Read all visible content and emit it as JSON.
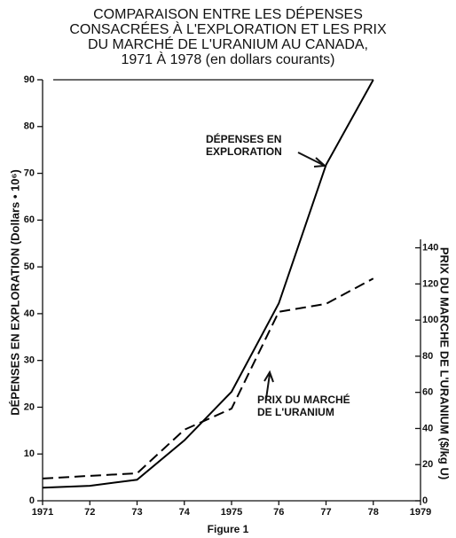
{
  "chart_data": {
    "type": "line",
    "title": [
      "COMPARAISON ENTRE LES DÉPENSES",
      "CONSACRÉES À L'EXPLORATION ET LES PRIX",
      "DU MARCHÉ DE L'URANIUM AU CANADA,",
      "1971 À 1978  (en dollars courants)"
    ],
    "ylabel": "DÉPENSES EN EXPLORATION (Dollars • 10⁶)",
    "y2label": "PRIX DU MARCHE DE L'URANIUM ($/kg U)",
    "caption": "Figure 1",
    "x": [
      1971,
      1972,
      1973,
      1974,
      1975,
      1976,
      1977,
      1978
    ],
    "xlim": [
      1971,
      1979
    ],
    "xticks": [
      1971,
      {
        "value": 1972,
        "label": "72"
      },
      {
        "value": 1973,
        "label": "73"
      },
      {
        "value": 1974,
        "label": "74"
      },
      1975,
      {
        "value": 1976,
        "label": "76"
      },
      {
        "value": 1977,
        "label": "77"
      },
      {
        "value": 1978,
        "label": "78"
      },
      1979
    ],
    "ylim": [
      0,
      90
    ],
    "yticks": [
      0,
      10,
      20,
      30,
      40,
      50,
      60,
      70,
      80,
      90
    ],
    "y2lim": [
      0,
      233
    ],
    "y2ticks": [
      0,
      20,
      40,
      60,
      80,
      100,
      120,
      140
    ],
    "series": [
      {
        "color": "#000000",
        "style": "solid",
        "values": [
          2.8,
          3.2,
          4.5,
          12.9,
          23.3,
          42.2,
          71.8,
          90
        ]
      },
      {
        "color": "#000000",
        "style": "dashed",
        "axis": "y2",
        "values": [
          12.3,
          13.8,
          15.2,
          39.3,
          51,
          104.6,
          109,
          123
        ]
      }
    ],
    "annotations": [
      {
        "lines": [
          "DÉPENSES EN",
          "EXPLORATION"
        ]
      },
      {
        "lines": [
          "PRIX DU MARCHÉ",
          "DE L'URANIUM"
        ]
      }
    ]
  }
}
